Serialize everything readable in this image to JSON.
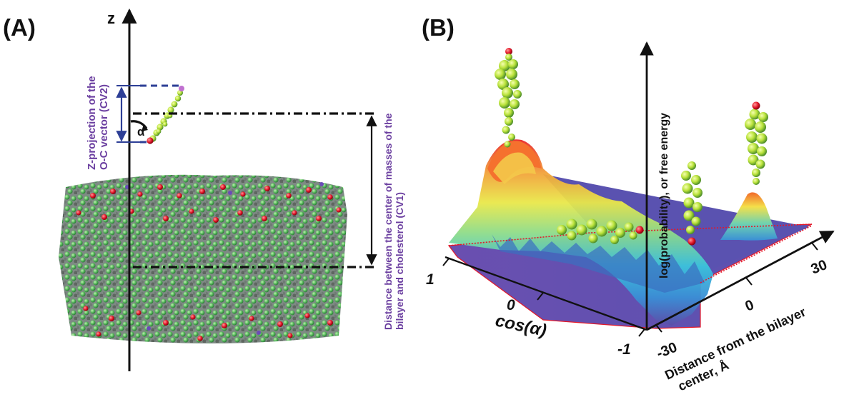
{
  "panel_a": {
    "label": "(A)",
    "z_axis_label": "z",
    "alpha_label": "α",
    "cv2_label_line1": "Z-projection of the",
    "cv2_label_line2": "O-C vector (CV2)",
    "cv1_label_line1": "Distance between the center of masses of the",
    "cv1_label_line2": "bilayer and cholesterol (CV1)"
  },
  "panel_b": {
    "label": "(B)",
    "vertical_axis_label": "log(probability), or free energy",
    "cos_axis_label": "cos(α)",
    "cos_ticks": [
      "1",
      "0",
      "-1"
    ],
    "distance_axis_label_line1": "Distance from the bilayer",
    "distance_axis_label_line2": "center, Å",
    "distance_ticks": [
      "-30",
      "0",
      "30"
    ]
  },
  "colors": {
    "purple_text": "#6b3fa0",
    "dimension_blue": "#2d3f96",
    "membrane_green": "#5cc866",
    "oxygen_red": "#e3182a",
    "surface_base": "#5b4ea8"
  }
}
